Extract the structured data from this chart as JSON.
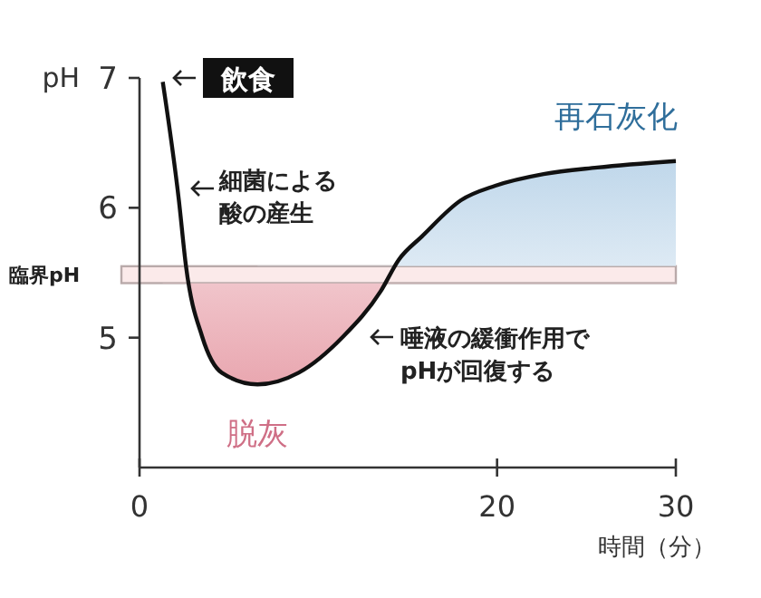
{
  "chart_data": {
    "type": "line",
    "ylabel": "pH",
    "xlabel": "時間（分）",
    "xlim": [
      0,
      30
    ],
    "xticks": [
      0,
      20,
      30
    ],
    "ylim": [
      4,
      7
    ],
    "yticks": [
      5,
      6,
      7
    ],
    "series": [
      {
        "color": "#111111",
        "x": [
          1.3,
          2.2,
          2.6,
          3.5,
          4.6,
          6.6,
          8.9,
          11.4,
          13.5,
          14.5,
          15.8,
          18.0,
          19.9,
          22.6,
          25.6,
          30
        ],
        "values": [
          6.97,
          6.06,
          5.55,
          5.01,
          4.73,
          4.64,
          4.73,
          5.01,
          5.36,
          5.6,
          5.78,
          6.06,
          6.17,
          6.26,
          6.31,
          6.36
        ]
      }
    ],
    "bands": [
      {
        "axis": "y",
        "from": 5.42,
        "to": 5.55,
        "label": "臨界pH",
        "color": "#fbeaea"
      }
    ],
    "annotations": [
      "飲食",
      "細菌による酸の産生",
      "唾液の緩衝作用でpHが回復する",
      "再石灰化",
      "脱灰"
    ]
  }
}
